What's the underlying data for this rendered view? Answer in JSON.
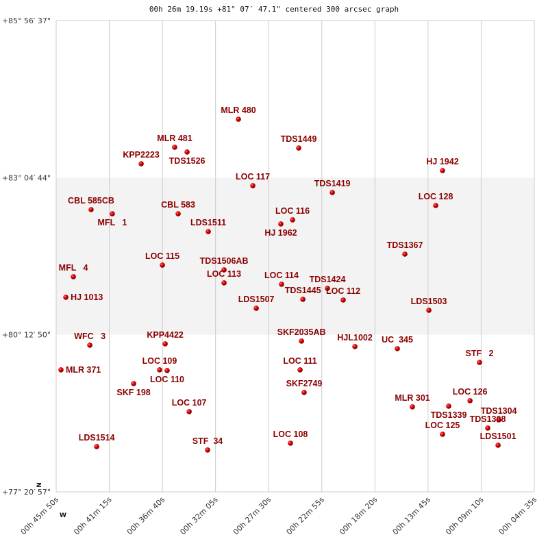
{
  "chart_data": {
    "type": "scatter",
    "title": "00h 26m 19.19s +81° 07′ 47.1\" centered 300 arcsec graph",
    "x_units": "RA minutes (00h)",
    "y_units": "Dec degrees",
    "xlim": [
      45.833,
      4.583
    ],
    "ylim": [
      77.349,
      85.944
    ],
    "x_ticks": [
      "00h 45m 50s",
      "00h 41m 15s",
      "00h 36m 40s",
      "00h 32m 05s",
      "00h 27m 30s",
      "00h 22m 55s",
      "00h 18m 20s",
      "00h 13m 45s",
      "00h 09m 10s",
      "00h 04m 35s"
    ],
    "y_ticks": [
      "+85° 56′ 37\"",
      "+83° 04′ 44\"",
      "+80° 12′ 50\"",
      "+77° 20′ 57\""
    ],
    "highlight_band_dec": [
      80.214,
      83.079
    ],
    "grid": "vertical",
    "orientation_marks": {
      "north": "N",
      "west": "W"
    },
    "colors": {
      "point": "#dd0000",
      "label": "#8b0000",
      "band": "#f3f3f3",
      "grid": "#cccccc"
    },
    "points": [
      [
        "MLR 480",
        30.11,
        84.145
      ],
      [
        "MLR 481",
        35.61,
        83.633
      ],
      [
        "TDS1526",
        34.54,
        83.546
      ],
      [
        "KPP2223",
        38.5,
        83.333
      ],
      [
        "TDS1449",
        24.91,
        83.62
      ],
      [
        "HJ 1942",
        12.5,
        83.208
      ],
      [
        "LOC 117",
        28.87,
        82.933
      ],
      [
        "TDS1419",
        22.01,
        82.808
      ],
      [
        "LOC 128",
        13.09,
        82.571
      ],
      [
        "CBL 585CB",
        42.82,
        82.496
      ],
      [
        "MFL   1",
        40.99,
        82.421
      ],
      [
        "CBL 583",
        35.31,
        82.421
      ],
      [
        "LDS1511",
        32.71,
        82.096
      ],
      [
        "LOC 116",
        25.44,
        82.309
      ],
      [
        "HJ 1962",
        26.45,
        82.234
      ],
      [
        "TDS1367",
        15.75,
        81.684
      ],
      [
        "LOC 115",
        36.67,
        81.484
      ],
      [
        "TDS1506AB",
        31.35,
        81.397
      ],
      [
        "LOC 113",
        31.35,
        81.16
      ],
      [
        "MFL   4",
        44.35,
        81.272
      ],
      [
        "HJ 1013",
        45.0,
        80.897
      ],
      [
        "LOC 114",
        26.39,
        81.135
      ],
      [
        "TDS1424",
        22.43,
        81.06
      ],
      [
        "TDS1445",
        24.55,
        80.86
      ],
      [
        "LOC 112",
        21.07,
        80.847
      ],
      [
        "LDS1507",
        28.57,
        80.697
      ],
      [
        "LDS1503",
        13.68,
        80.66
      ],
      [
        "SKF2035AB",
        24.67,
        80.098
      ],
      [
        "HJL1002",
        20.06,
        79.998
      ],
      [
        "UC  345",
        16.4,
        79.96
      ],
      [
        "WFC   3",
        42.93,
        80.023
      ],
      [
        "KPP4422",
        36.43,
        80.048
      ],
      [
        "MLR 371",
        45.42,
        79.573
      ],
      [
        "LOC 109",
        36.91,
        79.573
      ],
      [
        "LOC 110",
        36.26,
        79.561
      ],
      [
        "LOC 111",
        24.79,
        79.573
      ],
      [
        "STF   2",
        9.31,
        79.71
      ],
      [
        "SKF 198",
        39.15,
        79.323
      ],
      [
        "SKF2749",
        24.44,
        79.161
      ],
      [
        "LOC 126",
        10.13,
        79.011
      ],
      [
        "MLR 301",
        15.1,
        78.899
      ],
      [
        "TDS1339",
        11.97,
        78.911
      ],
      [
        "LOC 107",
        34.36,
        78.811
      ],
      [
        "TDS1304",
        7.65,
        78.661
      ],
      [
        "TDS1308",
        8.6,
        78.511
      ],
      [
        "LOC 125",
        12.5,
        78.399
      ],
      [
        "LDS1514",
        42.34,
        78.174
      ],
      [
        "STF  34",
        32.77,
        78.112
      ],
      [
        "LOC 108",
        25.62,
        78.236
      ],
      [
        "LDS1501",
        7.71,
        78.199
      ]
    ]
  }
}
